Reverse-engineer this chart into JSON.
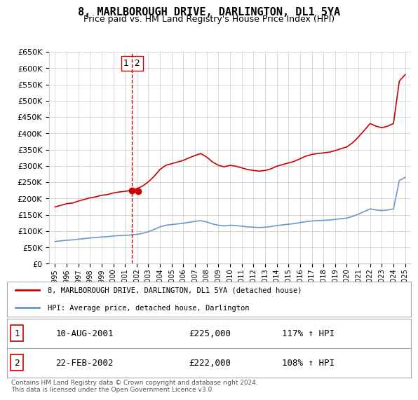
{
  "title": "8, MARLBOROUGH DRIVE, DARLINGTON, DL1 5YA",
  "subtitle": "Price paid vs. HM Land Registry's House Price Index (HPI)",
  "legend_line1": "8, MARLBOROUGH DRIVE, DARLINGTON, DL1 5YA (detached house)",
  "legend_line2": "HPI: Average price, detached house, Darlington",
  "purchase1_label": "1",
  "purchase1_date": "10-AUG-2001",
  "purchase1_price": "£225,000",
  "purchase1_hpi": "117% ↑ HPI",
  "purchase2_label": "2",
  "purchase2_date": "22-FEB-2002",
  "purchase2_price": "£222,000",
  "purchase2_hpi": "108% ↑ HPI",
  "footer": "Contains HM Land Registry data © Crown copyright and database right 2024.\nThis data is licensed under the Open Government Licence v3.0.",
  "ylim": [
    0,
    650000
  ],
  "yticks": [
    0,
    50000,
    100000,
    150000,
    200000,
    250000,
    300000,
    350000,
    400000,
    450000,
    500000,
    550000,
    600000,
    650000
  ],
  "hpi_color": "#6699cc",
  "price_color": "#cc0000",
  "marker_color": "#cc0000",
  "vline_color": "#cc0000",
  "grid_color": "#cccccc",
  "bg_color": "#ffffff",
  "purchase1_year": 2001.6,
  "purchase2_year": 2002.15,
  "purchase1_value": 225000,
  "purchase2_value": 222000
}
